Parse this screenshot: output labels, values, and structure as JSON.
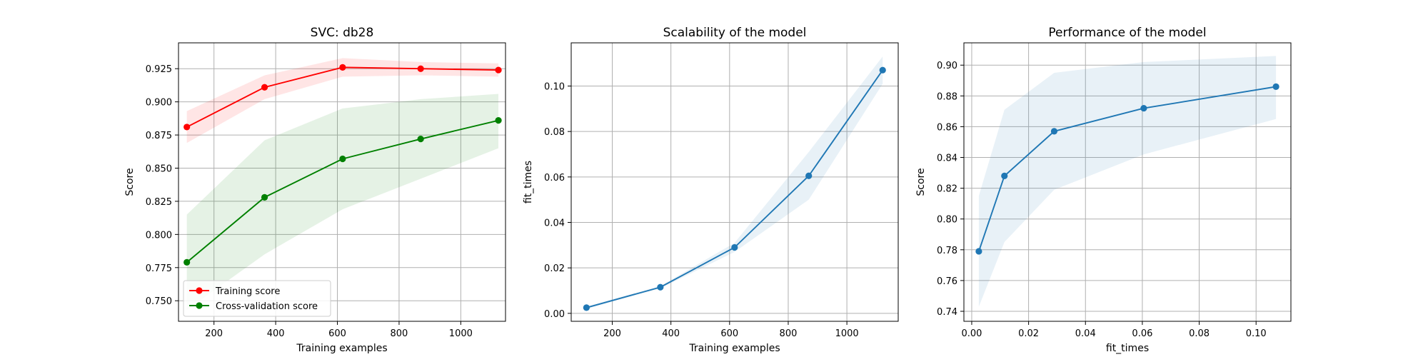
{
  "chart_data": [
    {
      "type": "line",
      "title": "SVC: db28",
      "xlabel": "Training examples",
      "ylabel": "Score",
      "xlim": [
        85,
        1145
      ],
      "ylim": [
        0.7345,
        0.9445
      ],
      "xticks": [
        200,
        400,
        600,
        800,
        1000
      ],
      "yticks": [
        0.75,
        0.775,
        0.8,
        0.825,
        0.85,
        0.875,
        0.9,
        0.925
      ],
      "ytick_labels": [
        "0.750",
        "0.775",
        "0.800",
        "0.825",
        "0.850",
        "0.875",
        "0.900",
        "0.925"
      ],
      "grid": true,
      "legend": "lower-left",
      "x": [
        112,
        364,
        617,
        870,
        1122
      ],
      "series": [
        {
          "name": "Training score",
          "color": "#ff0000",
          "band_color": "#ff0000",
          "values": [
            0.881,
            0.911,
            0.926,
            0.925,
            0.924
          ],
          "lower": [
            0.869,
            0.902,
            0.919,
            0.92,
            0.919
          ],
          "upper": [
            0.893,
            0.92,
            0.933,
            0.93,
            0.929
          ]
        },
        {
          "name": "Cross-validation score",
          "color": "#008000",
          "band_color": "#008000",
          "values": [
            0.779,
            0.828,
            0.857,
            0.872,
            0.886
          ],
          "lower": [
            0.743,
            0.785,
            0.819,
            0.842,
            0.865
          ],
          "upper": [
            0.815,
            0.871,
            0.895,
            0.902,
            0.906
          ]
        }
      ]
    },
    {
      "type": "line",
      "title": "Scalability of the model",
      "xlabel": "Training examples",
      "ylabel": "fit_times",
      "xlim": [
        60,
        1175
      ],
      "ylim": [
        -0.0035,
        0.119
      ],
      "xticks": [
        200,
        400,
        600,
        800,
        1000
      ],
      "yticks": [
        0.0,
        0.02,
        0.04,
        0.06,
        0.08,
        0.1
      ],
      "ytick_labels": [
        "0.00",
        "0.02",
        "0.04",
        "0.06",
        "0.08",
        "0.10"
      ],
      "grid": true,
      "x": [
        112,
        364,
        617,
        870,
        1122
      ],
      "series": [
        {
          "color": "#1f77b4",
          "band_color": "#1f77b4",
          "values": [
            0.0025,
            0.0115,
            0.029,
            0.0605,
            0.107
          ],
          "lower": [
            0.002,
            0.011,
            0.027,
            0.05,
            0.101
          ],
          "upper": [
            0.003,
            0.012,
            0.031,
            0.071,
            0.113
          ]
        }
      ]
    },
    {
      "type": "line",
      "title": "Performance of the model",
      "xlabel": "fit_times",
      "ylabel": "Score",
      "xlim": [
        -0.00275,
        0.11225
      ],
      "ylim": [
        0.7335,
        0.9145
      ],
      "xticks": [
        0.0,
        0.02,
        0.04,
        0.06,
        0.08,
        0.1
      ],
      "xtick_labels": [
        "0.00",
        "0.02",
        "0.04",
        "0.06",
        "0.08",
        "0.10"
      ],
      "yticks": [
        0.74,
        0.76,
        0.78,
        0.8,
        0.82,
        0.84,
        0.86,
        0.88,
        0.9
      ],
      "ytick_labels": [
        "0.74",
        "0.76",
        "0.78",
        "0.80",
        "0.82",
        "0.84",
        "0.86",
        "0.88",
        "0.90"
      ],
      "grid": true,
      "x": [
        0.0025,
        0.0115,
        0.029,
        0.0605,
        0.107
      ],
      "series": [
        {
          "color": "#1f77b4",
          "band_color": "#1f77b4",
          "values": [
            0.779,
            0.828,
            0.857,
            0.872,
            0.886
          ],
          "lower": [
            0.743,
            0.785,
            0.819,
            0.842,
            0.865
          ],
          "upper": [
            0.815,
            0.871,
            0.895,
            0.902,
            0.906
          ]
        }
      ]
    }
  ]
}
